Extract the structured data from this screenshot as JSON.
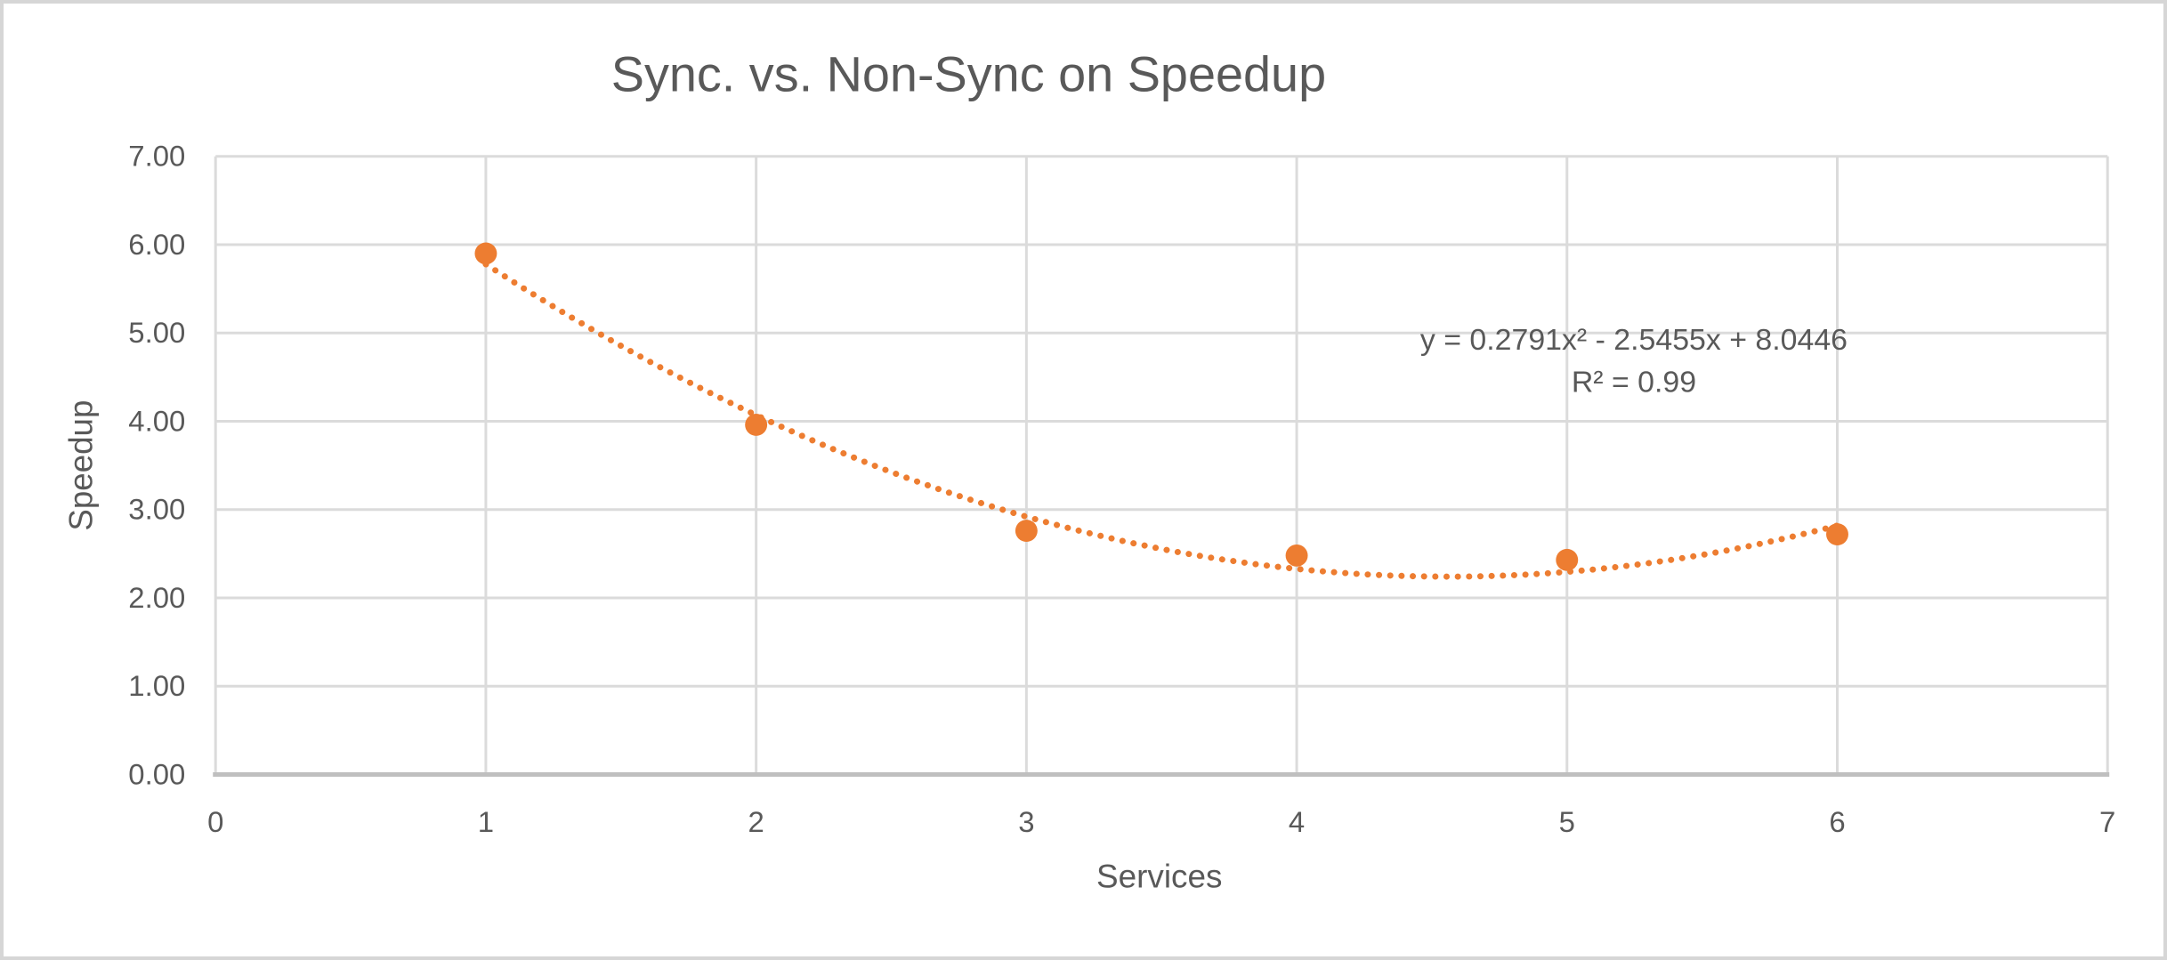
{
  "chart_data": {
    "type": "scatter",
    "title": "Sync. vs. Non-Sync on Speedup",
    "xlabel": "Services",
    "ylabel": "Speedup",
    "x": [
      1,
      2,
      3,
      4,
      5,
      6
    ],
    "y": [
      5.9,
      3.96,
      2.76,
      2.48,
      2.43,
      2.72
    ],
    "xlim": [
      0,
      7
    ],
    "ylim": [
      0,
      7
    ],
    "x_ticks": [
      "0",
      "1",
      "2",
      "3",
      "4",
      "5",
      "6",
      "7"
    ],
    "y_ticks": [
      "0.00",
      "1.00",
      "2.00",
      "3.00",
      "4.00",
      "5.00",
      "6.00",
      "7.00"
    ],
    "grid": true,
    "legend": "none",
    "series_name": "Speedup",
    "series_color": "#ED7D31",
    "marker": {
      "shape": "circle",
      "radius_px": 12.5
    },
    "trendline": {
      "type": "polynomial",
      "order": 2,
      "coefficients": [
        0.2791,
        -2.5455,
        8.0446
      ],
      "range": [
        1,
        6
      ],
      "style": "dotted",
      "equation_label": "y = 0.2791x² - 2.5455x + 8.0446",
      "r_squared_label": "R² = 0.99"
    },
    "colors": {
      "text": "#595959",
      "gridline": "#DBDBDB",
      "axis_line": "#BFBFBF",
      "frame_border": "#D6D6D6",
      "plot_background": "#FFFFFF"
    }
  }
}
